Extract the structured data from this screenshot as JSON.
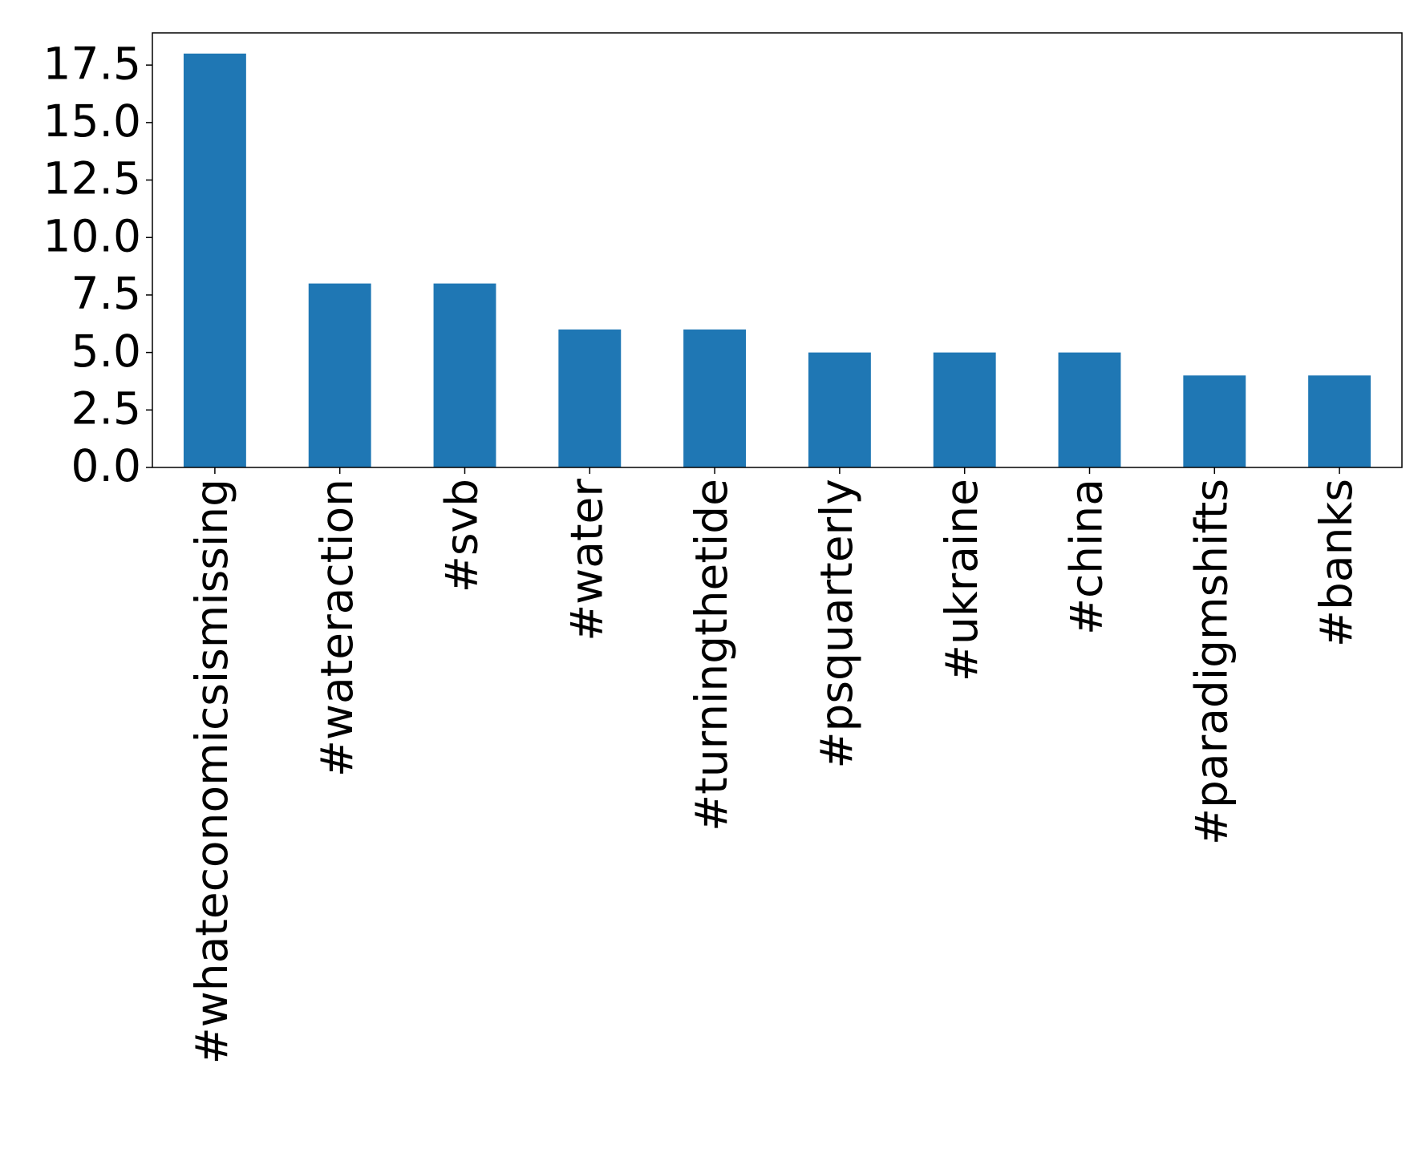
{
  "chart_data": {
    "type": "bar",
    "categories": [
      "#whateconomicsismissing",
      "#wateraction",
      "#svb",
      "#water",
      "#turningthetide",
      "#psquarterly",
      "#ukraine",
      "#china",
      "#paradigmshifts",
      "#banks"
    ],
    "values": [
      18,
      8,
      8,
      6,
      6,
      5,
      5,
      5,
      4,
      4
    ],
    "color": "#1f77b4",
    "ylim": [
      0,
      18.9
    ],
    "yticks": [
      {
        "value": 0,
        "label": "0.0"
      },
      2.5,
      {
        "value": 5,
        "label": "5.0"
      },
      7.5,
      {
        "value": 10,
        "label": "10.0"
      },
      12.5,
      {
        "value": 15,
        "label": "15.0"
      },
      17.5
    ],
    "grid": false
  }
}
